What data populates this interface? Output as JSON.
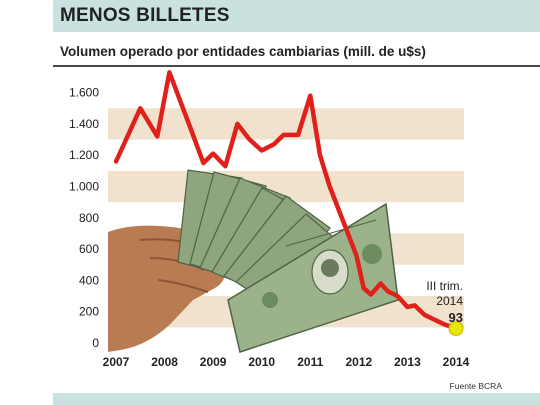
{
  "header": {
    "headline": "MENOS BILLETES",
    "subtitle": "Volumen operado por entidades cambiarias (mill. de u$s)",
    "source": "Fuente BCRA"
  },
  "colors": {
    "header_band": "#c9e1df",
    "stripe": "#f0e2cc",
    "line": "#e0201b",
    "marker": "#e6e600"
  },
  "illustration": "hand-holding-dollar-bills",
  "chart_data": {
    "type": "line",
    "title": "Volumen operado por entidades cambiarias (mill. de u$s)",
    "ylim": [
      0,
      1700
    ],
    "yticks": [
      0,
      200,
      400,
      600,
      800,
      "1.000",
      "1.200",
      "1.400",
      "1.600"
    ],
    "ytick_values": [
      0,
      200,
      400,
      600,
      800,
      1000,
      1200,
      1400,
      1600
    ],
    "categories": [
      "2007",
      "2008",
      "2009",
      "2010",
      "2011",
      "2012",
      "2013",
      "2014"
    ],
    "grid": "horizontal stripes",
    "series": [
      {
        "x": [
          2007.0,
          2007.5,
          2007.85,
          2008.1,
          2008.5,
          2008.8,
          2009.0,
          2009.25,
          2009.5,
          2009.75,
          2010.0,
          2010.25,
          2010.45,
          2010.75,
          2011.0,
          2011.2,
          2011.4,
          2011.55,
          2011.75,
          2011.95,
          2012.1,
          2012.25,
          2012.45,
          2012.6,
          2012.8,
          2013.0,
          2013.15,
          2013.35,
          2013.55,
          2013.75,
          2014.0
        ],
        "y": [
          1160,
          1500,
          1320,
          1730,
          1400,
          1150,
          1210,
          1130,
          1400,
          1300,
          1230,
          1270,
          1330,
          1330,
          1580,
          1200,
          1000,
          880,
          720,
          560,
          350,
          310,
          380,
          330,
          300,
          230,
          240,
          180,
          150,
          120,
          93
        ]
      }
    ],
    "annotation": {
      "line1": "III trim.",
      "line2": "2014",
      "value": "93",
      "x": 2014.0,
      "y": 93
    }
  }
}
